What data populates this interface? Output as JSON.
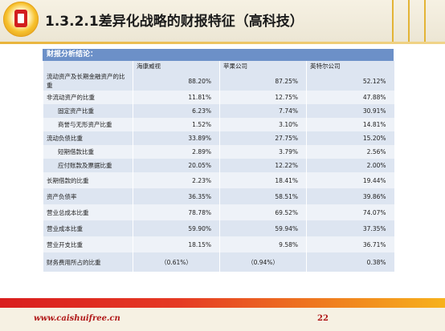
{
  "slide": {
    "title": "1.3.2.1差异化战略的财报特征（高科技）",
    "panel_title": "财报分析结论：",
    "footer_url": "www.caishuifree.cn",
    "page_number": "22"
  },
  "table": {
    "columns": [
      "",
      "海康威视",
      "苹果公司",
      "英特尔公司"
    ],
    "rows": [
      {
        "label": "流动资产及长期金融资产的比重",
        "indent": false,
        "values": [
          "88.20%",
          "87.25%",
          "52.12%"
        ]
      },
      {
        "label": "非流动资产的比重",
        "indent": false,
        "values": [
          "11.81%",
          "12.75%",
          "47.88%"
        ]
      },
      {
        "label": "固定资产比重",
        "indent": true,
        "values": [
          "6.23%",
          "7.74%",
          "30.91%"
        ]
      },
      {
        "label": "商誉与无形资产比重",
        "indent": true,
        "values": [
          "1.52%",
          "3.10%",
          "14.81%"
        ]
      },
      {
        "label": "流动负债比重",
        "indent": false,
        "values": [
          "33.89%",
          "27.75%",
          "15.20%"
        ]
      },
      {
        "label": "短期借款比重",
        "indent": true,
        "values": [
          "2.89%",
          "3.79%",
          "2.56%"
        ]
      },
      {
        "label": "应付账款及票据比重",
        "indent": true,
        "values": [
          "20.05%",
          "12.22%",
          "2.00%"
        ]
      },
      {
        "label": "长期借款的比重",
        "indent": false,
        "values": [
          "2.23%",
          "18.41%",
          "19.44%"
        ]
      },
      {
        "label": "资产负债率",
        "indent": false,
        "values": [
          "36.35%",
          "58.51%",
          "39.86%"
        ]
      },
      {
        "label": "营业总成本比重",
        "indent": false,
        "values": [
          "78.78%",
          "69.52%",
          "74.07%"
        ]
      },
      {
        "label": "营业成本比重",
        "indent": false,
        "values": [
          "59.90%",
          "59.94%",
          "37.35%"
        ]
      },
      {
        "label": "营业开支比重",
        "indent": false,
        "values": [
          "18.15%",
          "9.58%",
          "36.71%"
        ]
      },
      {
        "label": "财务费用所占的比重",
        "indent": false,
        "values": [
          "（0.61%）",
          "（0.94%）",
          "0.38%"
        ]
      }
    ]
  },
  "colors": {
    "panel_header": "#6c90c8",
    "row_band": "#dde5f1",
    "row_plain": "#eef2f8",
    "footer_text": "#b01818"
  }
}
